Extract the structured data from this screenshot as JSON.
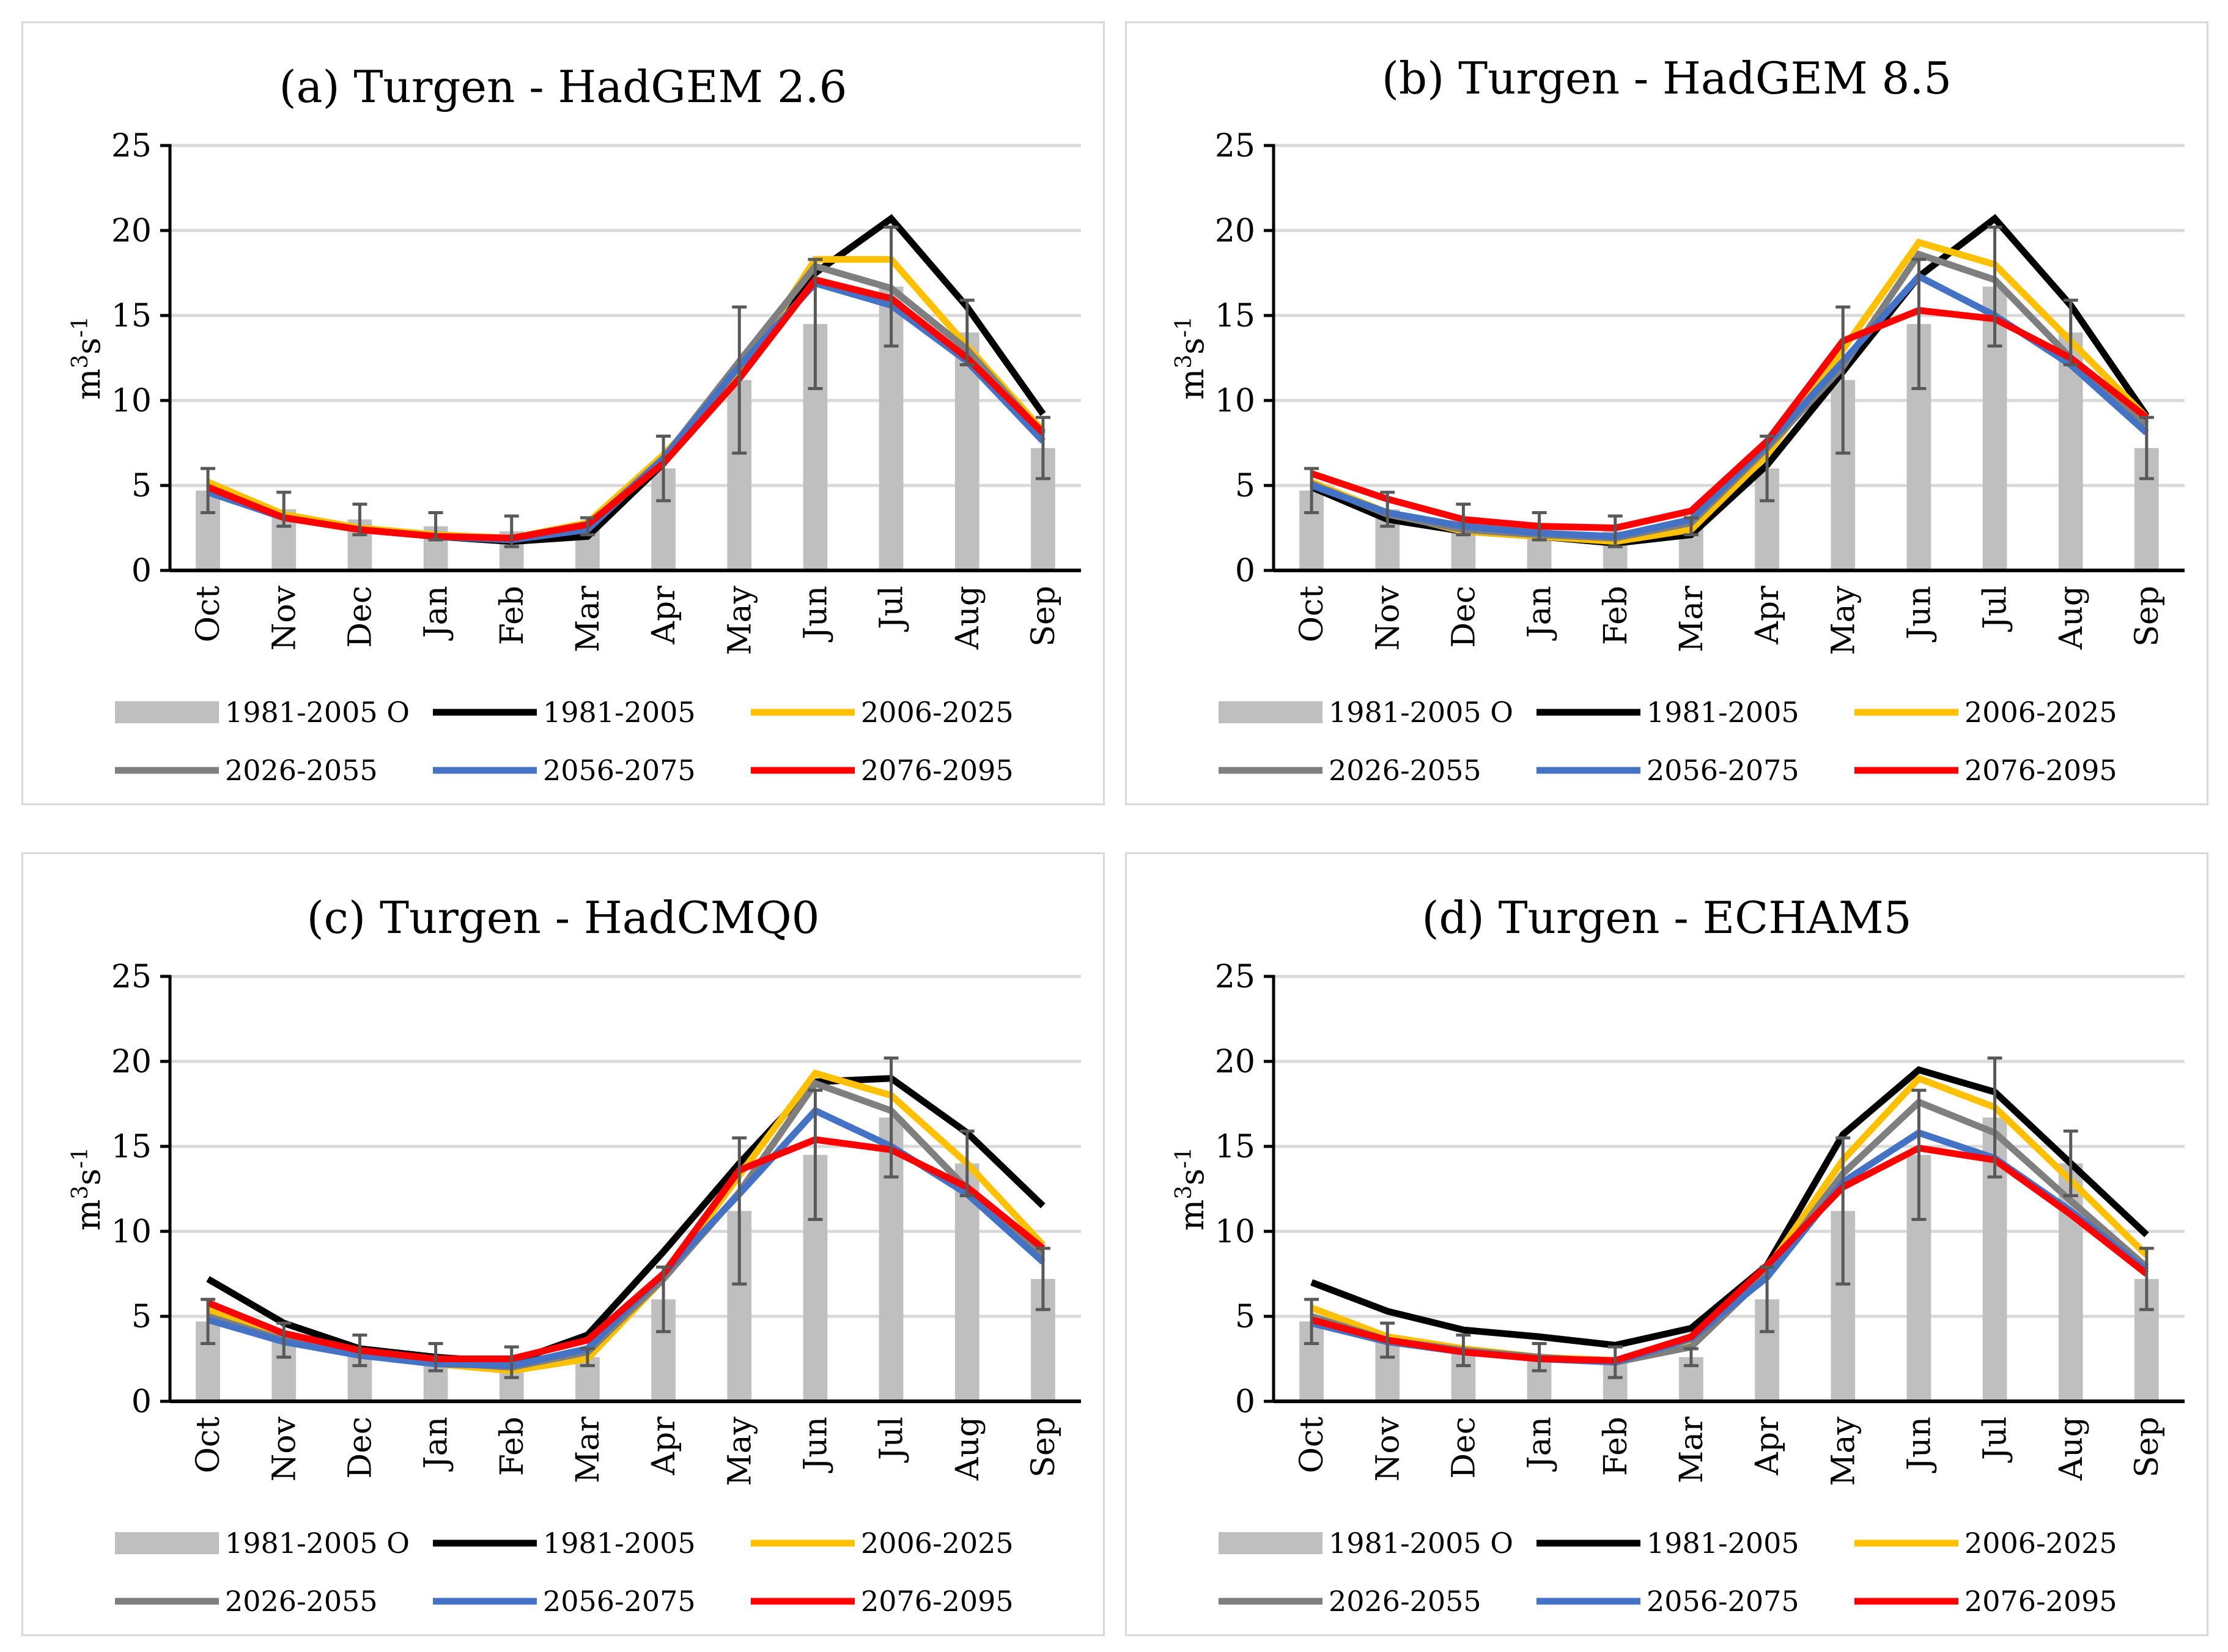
{
  "chart_data": [
    {
      "type": "line",
      "title": "(a) Turgen - HadGEM 2.6",
      "ylabel": "m3s-1",
      "ylim": [
        0,
        25
      ],
      "yticks": [
        0,
        5,
        10,
        15,
        20,
        25
      ],
      "grid": true,
      "legend_position": "bottom",
      "categories": [
        "Oct",
        "Nov",
        "Dec",
        "Jan",
        "Feb",
        "Mar",
        "Apr",
        "May",
        "Jun",
        "Jul",
        "Aug",
        "Sep"
      ],
      "bars": {
        "name": "1981-2005 O",
        "color": "#bfbfbf",
        "values": [
          4.7,
          3.6,
          3.0,
          2.6,
          2.3,
          2.6,
          6.0,
          11.2,
          14.5,
          16.7,
          14.0,
          7.2
        ],
        "error": [
          1.3,
          1.0,
          0.9,
          0.8,
          0.9,
          0.5,
          1.9,
          4.3,
          3.8,
          3.5,
          1.9,
          1.8
        ]
      },
      "series": [
        {
          "name": "1981-2005",
          "color": "#000000",
          "values": [
            4.8,
            3.2,
            2.4,
            2.0,
            1.7,
            2.0,
            6.3,
            11.8,
            17.5,
            20.7,
            15.5,
            9.2
          ]
        },
        {
          "name": "2006-2025",
          "color": "#ffc000",
          "values": [
            5.2,
            3.3,
            2.5,
            2.1,
            1.9,
            2.8,
            6.8,
            11.5,
            18.3,
            18.3,
            13.2,
            8.2
          ]
        },
        {
          "name": "2026-2055",
          "color": "#7f7f7f",
          "values": [
            4.6,
            3.1,
            2.4,
            2.0,
            1.8,
            2.6,
            6.6,
            12.3,
            17.9,
            16.6,
            13.0,
            8.0
          ]
        },
        {
          "name": "2056-2075",
          "color": "#4472c4",
          "values": [
            4.6,
            3.1,
            2.4,
            2.0,
            1.8,
            2.4,
            6.6,
            12.0,
            16.9,
            15.6,
            12.3,
            7.6
          ]
        },
        {
          "name": "2076-2095",
          "color": "#ff0000",
          "values": [
            4.9,
            3.1,
            2.4,
            2.0,
            1.9,
            2.7,
            6.3,
            11.3,
            17.1,
            16.0,
            12.5,
            8.1
          ]
        }
      ]
    },
    {
      "type": "line",
      "title": "(b) Turgen - HadGEM 8.5",
      "ylabel": "m3s-1",
      "ylim": [
        0,
        25
      ],
      "yticks": [
        0,
        5,
        10,
        15,
        20,
        25
      ],
      "grid": true,
      "legend_position": "bottom",
      "categories": [
        "Oct",
        "Nov",
        "Dec",
        "Jan",
        "Feb",
        "Mar",
        "Apr",
        "May",
        "Jun",
        "Jul",
        "Aug",
        "Sep"
      ],
      "bars": {
        "name": "1981-2005 O",
        "color": "#bfbfbf",
        "values": [
          4.7,
          3.6,
          3.0,
          2.6,
          2.3,
          2.6,
          6.0,
          11.2,
          14.5,
          16.7,
          14.0,
          7.2
        ],
        "error": [
          1.3,
          1.0,
          0.9,
          0.8,
          0.9,
          0.5,
          1.9,
          4.3,
          3.8,
          3.5,
          1.9,
          1.8
        ]
      },
      "series": [
        {
          "name": "1981-2005",
          "color": "#000000",
          "values": [
            4.9,
            3.0,
            2.3,
            2.0,
            1.6,
            2.1,
            6.2,
            11.7,
            17.3,
            20.7,
            15.6,
            9.1
          ]
        },
        {
          "name": "2006-2025",
          "color": "#ffc000",
          "values": [
            5.2,
            3.4,
            2.3,
            2.0,
            1.7,
            2.4,
            6.8,
            13.0,
            19.3,
            18.0,
            13.5,
            9.0
          ]
        },
        {
          "name": "2026-2055",
          "color": "#7f7f7f",
          "values": [
            5.1,
            3.3,
            2.4,
            2.1,
            1.9,
            2.8,
            7.2,
            12.0,
            18.6,
            17.1,
            12.5,
            8.6
          ]
        },
        {
          "name": "2056-2075",
          "color": "#4472c4",
          "values": [
            5.0,
            3.4,
            2.6,
            2.2,
            2.0,
            3.0,
            7.4,
            12.3,
            17.3,
            15.0,
            12.1,
            8.1
          ]
        },
        {
          "name": "2076-2095",
          "color": "#ff0000",
          "values": [
            5.7,
            4.2,
            3.0,
            2.6,
            2.5,
            3.5,
            7.6,
            13.5,
            15.3,
            14.8,
            12.5,
            9.0
          ]
        }
      ]
    },
    {
      "type": "line",
      "title": "(c) Turgen - HadCMQ0",
      "ylabel": "m3s-1",
      "ylim": [
        0,
        25
      ],
      "yticks": [
        0,
        5,
        10,
        15,
        20,
        25
      ],
      "grid": true,
      "legend_position": "bottom",
      "categories": [
        "Oct",
        "Nov",
        "Dec",
        "Jan",
        "Feb",
        "Mar",
        "Apr",
        "May",
        "Jun",
        "Jul",
        "Aug",
        "Sep"
      ],
      "bars": {
        "name": "1981-2005 O",
        "color": "#bfbfbf",
        "values": [
          4.7,
          3.6,
          3.0,
          2.6,
          2.3,
          2.6,
          6.0,
          11.2,
          14.5,
          16.7,
          14.0,
          7.2
        ],
        "error": [
          1.3,
          1.0,
          0.9,
          0.8,
          0.9,
          0.5,
          1.9,
          4.3,
          3.8,
          3.5,
          1.9,
          1.8
        ]
      },
      "series": [
        {
          "name": "1981-2005",
          "color": "#000000",
          "values": [
            7.2,
            4.6,
            3.1,
            2.6,
            2.3,
            3.9,
            8.8,
            14.0,
            18.8,
            19.0,
            15.8,
            11.5
          ]
        },
        {
          "name": "2006-2025",
          "color": "#ffc000",
          "values": [
            5.4,
            3.8,
            2.8,
            2.2,
            1.8,
            2.5,
            7.2,
            13.3,
            19.3,
            18.0,
            14.0,
            9.2
          ]
        },
        {
          "name": "2026-2055",
          "color": "#7f7f7f",
          "values": [
            5.0,
            3.6,
            2.7,
            2.3,
            2.0,
            2.9,
            7.2,
            12.3,
            18.7,
            17.1,
            12.5,
            8.6
          ]
        },
        {
          "name": "2056-2075",
          "color": "#4472c4",
          "values": [
            4.8,
            3.5,
            2.7,
            2.2,
            2.1,
            3.1,
            7.5,
            12.2,
            17.1,
            15.0,
            12.2,
            8.2
          ]
        },
        {
          "name": "2076-2095",
          "color": "#ff0000",
          "values": [
            5.8,
            4.0,
            3.0,
            2.5,
            2.5,
            3.6,
            7.5,
            13.6,
            15.4,
            14.8,
            12.6,
            9.0
          ]
        }
      ]
    },
    {
      "type": "line",
      "title": "(d) Turgen - ECHAM5",
      "ylabel": "m3s-1",
      "ylim": [
        0,
        25
      ],
      "yticks": [
        0,
        5,
        10,
        15,
        20,
        25
      ],
      "grid": true,
      "legend_position": "bottom",
      "categories": [
        "Oct",
        "Nov",
        "Dec",
        "Jan",
        "Feb",
        "Mar",
        "Apr",
        "May",
        "Jun",
        "Jul",
        "Aug",
        "Sep"
      ],
      "bars": {
        "name": "1981-2005 O",
        "color": "#bfbfbf",
        "values": [
          4.7,
          3.6,
          3.0,
          2.6,
          2.3,
          2.6,
          6.0,
          11.2,
          14.5,
          16.7,
          14.0,
          7.2
        ],
        "error": [
          1.3,
          1.0,
          0.9,
          0.8,
          0.9,
          0.5,
          1.9,
          4.3,
          3.8,
          3.5,
          1.9,
          1.8
        ]
      },
      "series": [
        {
          "name": "1981-2005",
          "color": "#000000",
          "values": [
            7.0,
            5.3,
            4.2,
            3.8,
            3.3,
            4.3,
            8.0,
            15.7,
            19.5,
            18.2,
            14.0,
            9.8
          ]
        },
        {
          "name": "2006-2025",
          "color": "#ffc000",
          "values": [
            5.5,
            3.8,
            3.1,
            2.6,
            2.4,
            3.6,
            7.8,
            14.2,
            19.0,
            17.3,
            13.0,
            8.6
          ]
        },
        {
          "name": "2026-2055",
          "color": "#7f7f7f",
          "values": [
            5.0,
            3.6,
            3.0,
            2.6,
            2.3,
            3.2,
            7.5,
            13.4,
            17.6,
            15.8,
            11.8,
            7.9
          ]
        },
        {
          "name": "2056-2075",
          "color": "#4472c4",
          "values": [
            4.6,
            3.5,
            2.9,
            2.5,
            2.3,
            3.7,
            7.3,
            12.9,
            15.8,
            14.3,
            11.2,
            7.7
          ]
        },
        {
          "name": "2076-2095",
          "color": "#ff0000",
          "values": [
            4.8,
            3.6,
            2.9,
            2.5,
            2.4,
            3.8,
            8.0,
            12.6,
            14.9,
            14.2,
            11.0,
            7.5
          ]
        }
      ]
    }
  ]
}
